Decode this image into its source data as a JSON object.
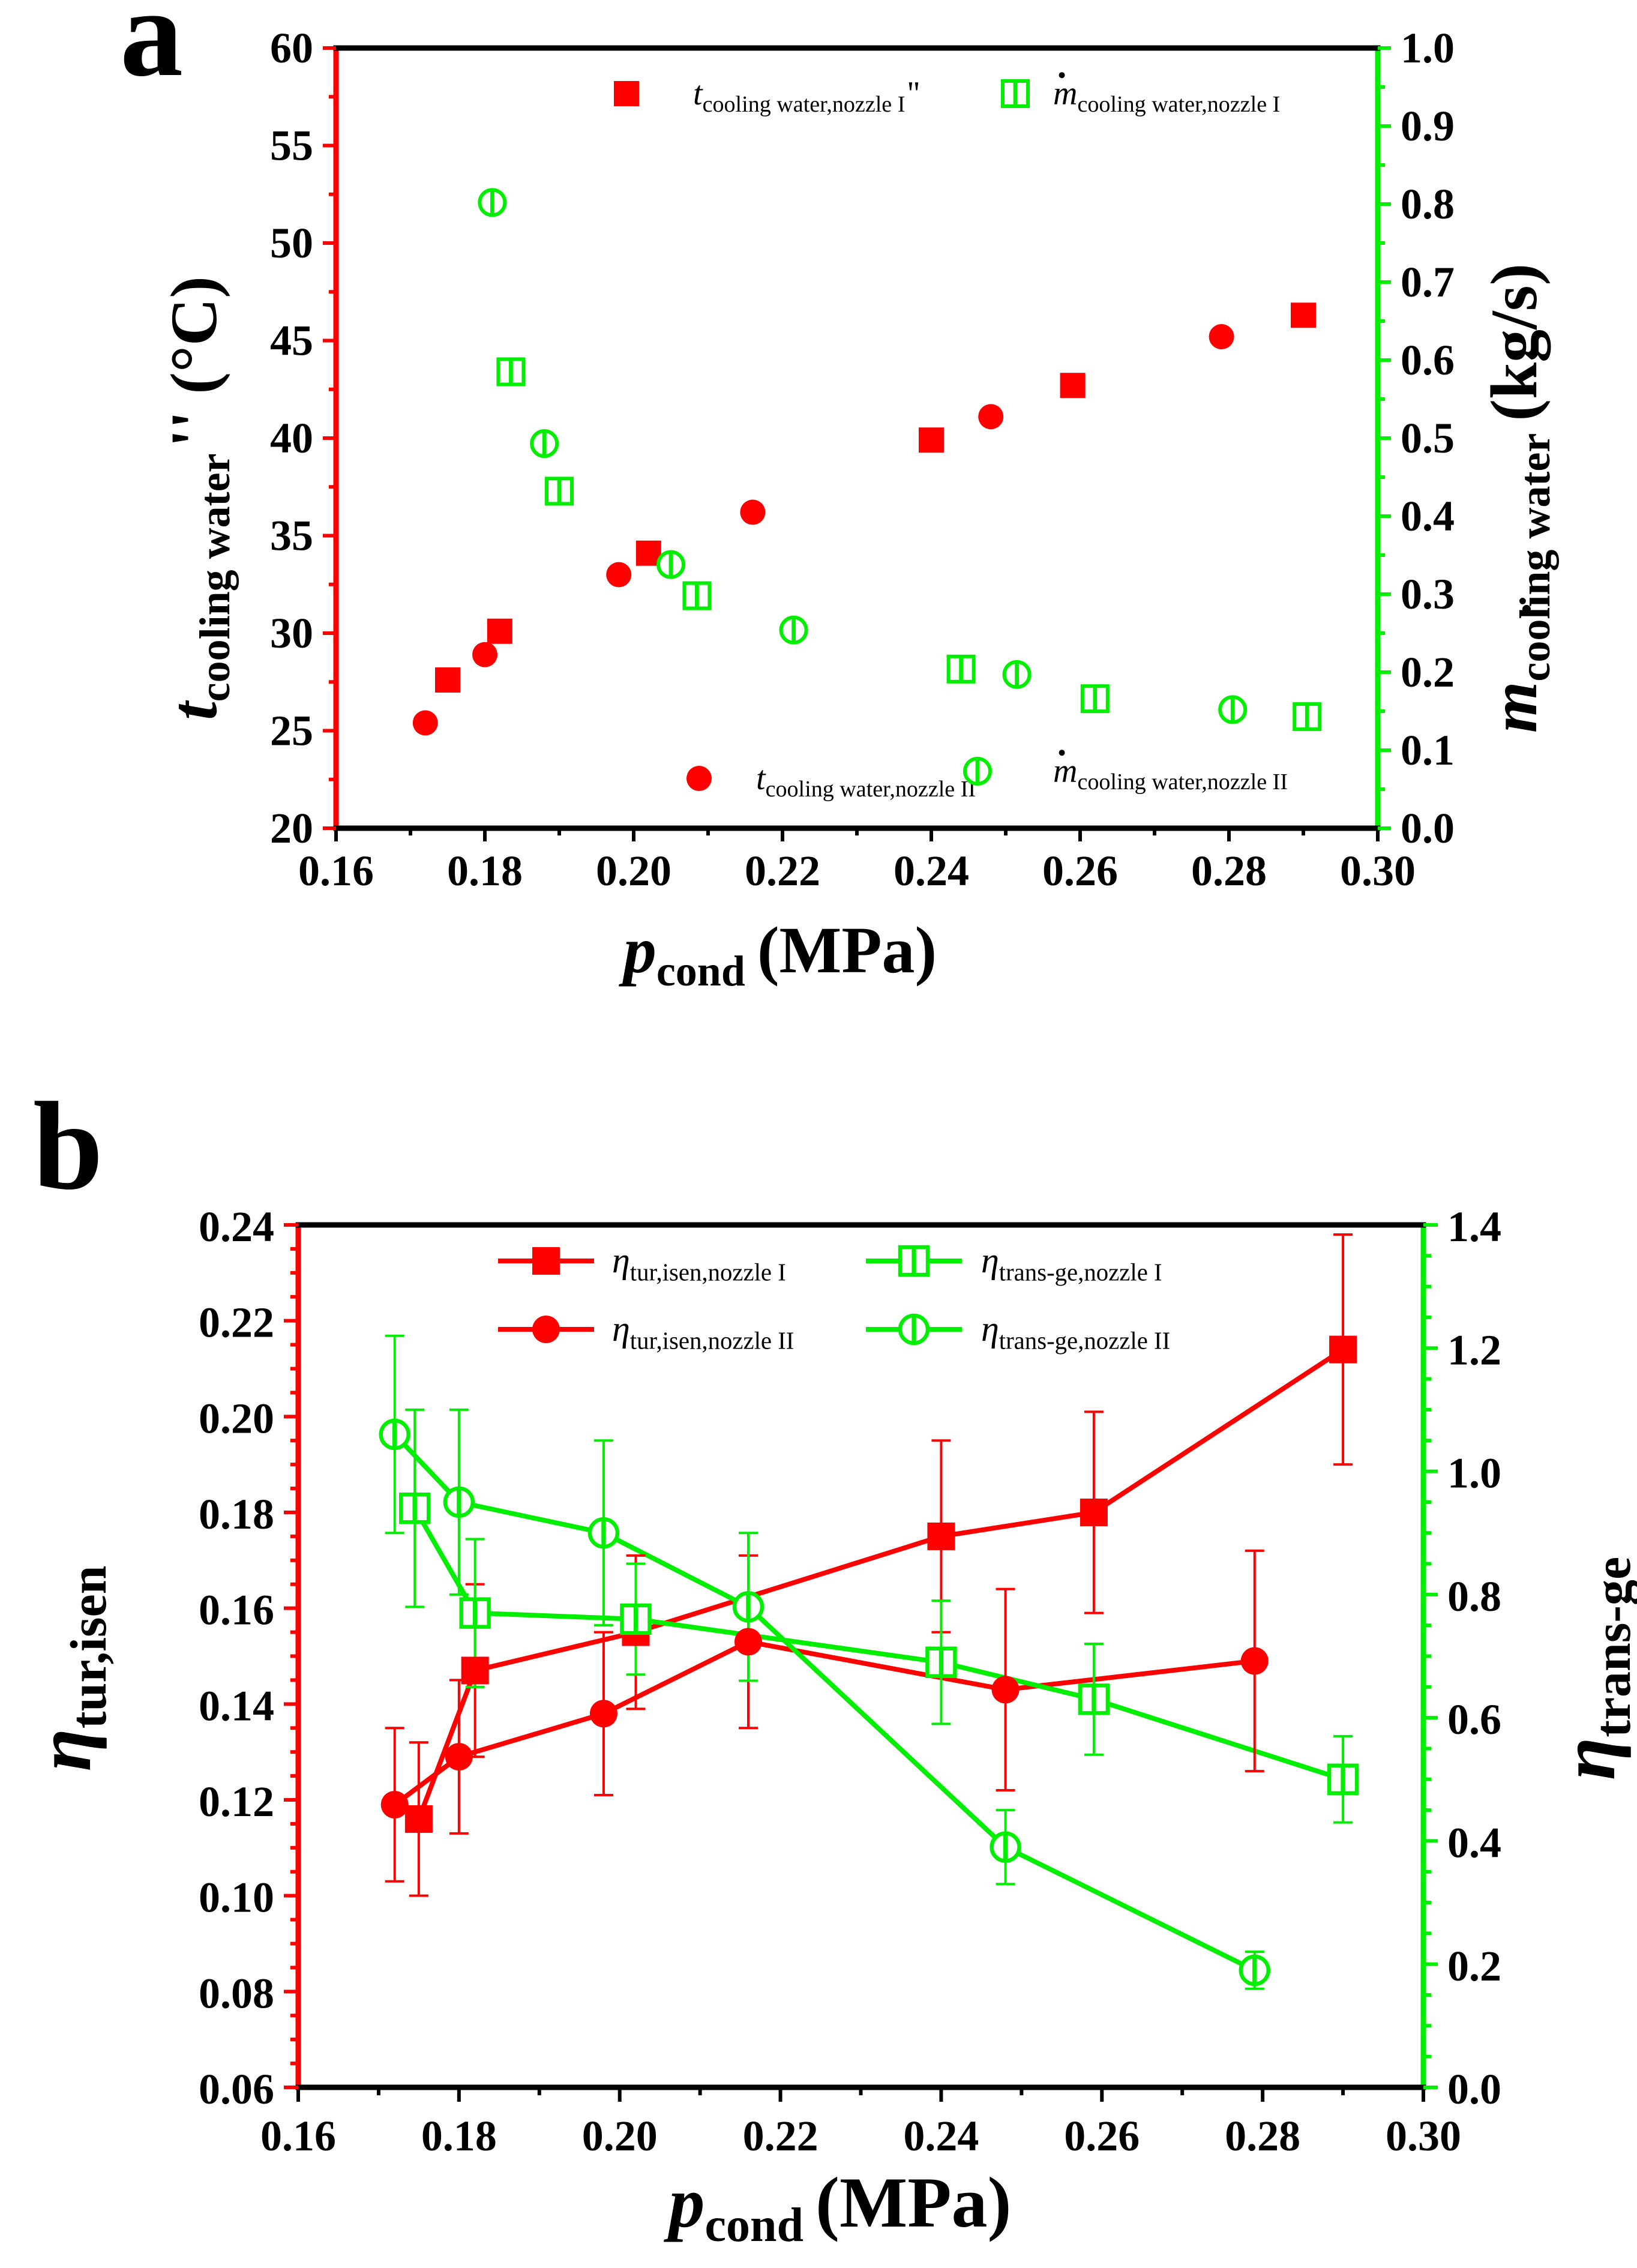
{
  "colors": {
    "red": "#ff0000",
    "green": "#00ee00",
    "black": "#000000"
  },
  "chart_data": [
    {
      "panel": "a",
      "type": "scatter",
      "title": "",
      "xlabel_main": "p",
      "xlabel_sub": "cond",
      "xlabel_unit": "(MPa)",
      "ylabel_left_main": "t",
      "ylabel_left_sub": "cooling water",
      "ylabel_left_unit": "'' (°C)",
      "ylabel_right_main": "m",
      "ylabel_right_sub": "cooling water",
      "ylabel_right_unit": "(kg/s)",
      "xlim": [
        0.16,
        0.3
      ],
      "xticks": [
        "0.16",
        "0.18",
        "0.20",
        "0.22",
        "0.24",
        "0.26",
        "0.28",
        "0.30"
      ],
      "ylim_left": [
        20,
        60
      ],
      "yticks_left": [
        "20",
        "25",
        "30",
        "35",
        "40",
        "45",
        "50",
        "55",
        "60"
      ],
      "ylim_right": [
        0.0,
        1.0
      ],
      "yticks_right": [
        "0.0",
        "0.1",
        "0.2",
        "0.3",
        "0.4",
        "0.5",
        "0.6",
        "0.7",
        "0.8",
        "0.9",
        "1.0"
      ],
      "series": [
        {
          "name": "t_cooling water,nozzle I''",
          "legend_main": "t",
          "legend_sub": "cooling water,nozzle I",
          "legend_suffix": "''",
          "axis": "left",
          "marker": "square",
          "fill": "solid",
          "color": "red",
          "x": [
            0.175,
            0.182,
            0.202,
            0.24,
            0.259,
            0.29
          ],
          "y": [
            27.6,
            30.1,
            34.1,
            39.9,
            42.7,
            46.3
          ]
        },
        {
          "name": "t_cooling water,nozzle II",
          "legend_main": "t",
          "legend_sub": "cooling water,nozzle II",
          "legend_suffix": "",
          "axis": "left",
          "marker": "circle",
          "fill": "solid",
          "color": "red",
          "x": [
            0.172,
            0.18,
            0.198,
            0.216,
            0.248,
            0.279
          ],
          "y": [
            25.4,
            28.9,
            33.0,
            36.2,
            41.1,
            45.2
          ]
        },
        {
          "name": "m_cooling water,nozzle I",
          "legend_main": "m",
          "legend_sub": "cooling water,nozzle I",
          "legend_suffix": "",
          "axis": "right",
          "marker": "square",
          "fill": "half",
          "color": "green",
          "x": [
            0.1835,
            0.19,
            0.2085,
            0.244,
            0.262,
            0.2905
          ],
          "y": [
            0.585,
            0.432,
            0.298,
            0.204,
            0.166,
            0.143
          ]
        },
        {
          "name": "m_cooling water,nozzle II",
          "legend_main": "m",
          "legend_sub": "cooling water,nozzle II",
          "legend_suffix": "",
          "axis": "right",
          "marker": "circle",
          "fill": "half",
          "color": "green",
          "x": [
            0.181,
            0.188,
            0.205,
            0.2215,
            0.2515,
            0.2805
          ],
          "y": [
            0.802,
            0.493,
            0.338,
            0.254,
            0.197,
            0.152
          ]
        }
      ],
      "legend_layout": {
        "row_top": [
          0,
          2
        ],
        "row_bottom": [
          1,
          3
        ]
      }
    },
    {
      "panel": "b",
      "type": "line",
      "title": "",
      "xlabel_main": "p",
      "xlabel_sub": "cond",
      "xlabel_unit": "(MPa)",
      "ylabel_left_main": "η",
      "ylabel_left_sub": "tur,isen",
      "ylabel_right_main": "η",
      "ylabel_right_sub": "trans-ge",
      "xlim": [
        0.16,
        0.3
      ],
      "xticks": [
        "0.16",
        "0.18",
        "0.20",
        "0.22",
        "0.24",
        "0.26",
        "0.28",
        "0.30"
      ],
      "ylim_left": [
        0.06,
        0.24
      ],
      "yticks_left": [
        "0.06",
        "0.08",
        "0.10",
        "0.12",
        "0.14",
        "0.16",
        "0.18",
        "0.20",
        "0.22",
        "0.24"
      ],
      "ylim_right": [
        0.0,
        1.4
      ],
      "yticks_right": [
        "0.0",
        "0.2",
        "0.4",
        "0.6",
        "0.8",
        "1.0",
        "1.2",
        "1.4"
      ],
      "series": [
        {
          "name": "η_tur,isen,nozzle I",
          "legend_main": "η",
          "legend_sub": "tur,isen,nozzle I",
          "axis": "left",
          "marker": "square",
          "fill": "solid",
          "color": "red",
          "x": [
            0.175,
            0.182,
            0.202,
            0.24,
            0.259,
            0.29
          ],
          "y": [
            0.116,
            0.147,
            0.155,
            0.175,
            0.18,
            0.214
          ],
          "err": [
            0.016,
            0.018,
            0.016,
            0.02,
            0.021,
            0.024
          ]
        },
        {
          "name": "η_tur,isen,nozzle II",
          "legend_main": "η",
          "legend_sub": "tur,isen,nozzle II",
          "axis": "left",
          "marker": "circle",
          "fill": "solid",
          "color": "red",
          "x": [
            0.172,
            0.18,
            0.198,
            0.216,
            0.248,
            0.279
          ],
          "y": [
            0.119,
            0.129,
            0.138,
            0.153,
            0.143,
            0.149
          ],
          "err": [
            0.016,
            0.016,
            0.017,
            0.018,
            0.021,
            0.023
          ]
        },
        {
          "name": "η_trans-ge,nozzle I",
          "legend_main": "η",
          "legend_sub": "trans-ge,nozzle I",
          "axis": "right",
          "marker": "square",
          "fill": "half",
          "color": "green",
          "x": [
            0.1745,
            0.182,
            0.202,
            0.24,
            0.259,
            0.29
          ],
          "y": [
            0.94,
            0.77,
            0.76,
            0.69,
            0.63,
            0.5
          ],
          "err": [
            0.16,
            0.12,
            0.09,
            0.1,
            0.09,
            0.07
          ]
        },
        {
          "name": "η_trans-ge,nozzle II",
          "legend_main": "η",
          "legend_sub": "trans-ge,nozzle II",
          "axis": "right",
          "marker": "circle",
          "fill": "half",
          "color": "green",
          "x": [
            0.172,
            0.18,
            0.198,
            0.216,
            0.248,
            0.279
          ],
          "y": [
            1.06,
            0.95,
            0.9,
            0.78,
            0.39,
            0.19
          ],
          "err": [
            0.16,
            0.15,
            0.15,
            0.12,
            0.06,
            0.03
          ]
        }
      ],
      "legend_layout": {
        "row_top": [
          0,
          2
        ],
        "row_bottom": [
          1,
          3
        ]
      }
    }
  ]
}
